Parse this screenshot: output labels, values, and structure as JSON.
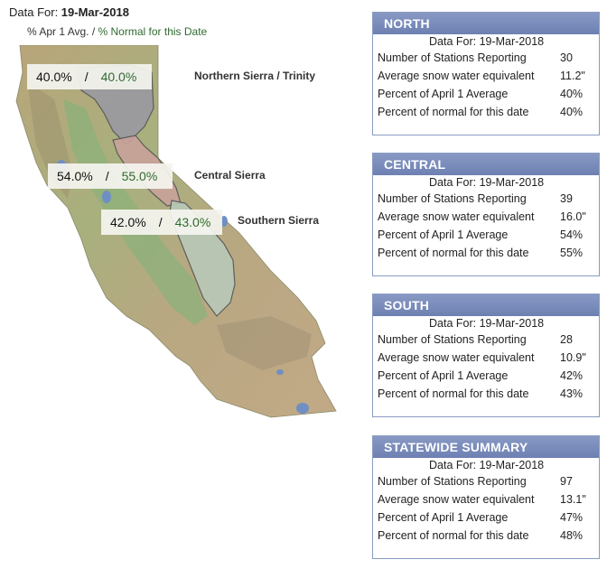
{
  "header": {
    "data_for_label": "Data For: ",
    "data_for_date": "19-Mar-2018",
    "legend_apr": "% Apr 1 Avg.",
    "legend_sep": " / ",
    "legend_normal": "% Normal for this Date"
  },
  "map": {
    "regions": [
      {
        "name": "Northern Sierra / Trinity",
        "pct_apr1": "40.0%",
        "pct_normal": "40.0%",
        "color": "#9a9aa2"
      },
      {
        "name": "Central Sierra",
        "pct_apr1": "54.0%",
        "pct_normal": "55.0%",
        "color": "#c9a29a"
      },
      {
        "name": "Southern Sierra",
        "pct_apr1": "42.0%",
        "pct_normal": "43.0%",
        "color": "#b8c9b8"
      }
    ],
    "separator": "/"
  },
  "panels": [
    {
      "title": "NORTH",
      "date": "Data For: 19-Mar-2018",
      "rows": [
        {
          "label": "Number of Stations Reporting",
          "value": "30"
        },
        {
          "label": "Average snow water equivalent",
          "value": "11.2\""
        },
        {
          "label": "Percent of April 1 Average",
          "value": "40%"
        },
        {
          "label": "Percent of normal for this date",
          "value": "40%"
        }
      ]
    },
    {
      "title": "CENTRAL",
      "date": "Data For: 19-Mar-2018",
      "rows": [
        {
          "label": "Number of Stations Reporting",
          "value": "39"
        },
        {
          "label": "Average snow water equivalent",
          "value": "16.0\""
        },
        {
          "label": "Percent of April 1 Average",
          "value": "54%"
        },
        {
          "label": "Percent of normal for this date",
          "value": "55%"
        }
      ]
    },
    {
      "title": "SOUTH",
      "date": "Data For: 19-Mar-2018",
      "rows": [
        {
          "label": "Number of Stations Reporting",
          "value": "28"
        },
        {
          "label": "Average snow water equivalent",
          "value": "10.9\""
        },
        {
          "label": "Percent of April 1 Average",
          "value": "42%"
        },
        {
          "label": "Percent of normal for this date",
          "value": "43%"
        }
      ]
    },
    {
      "title": "STATEWIDE SUMMARY",
      "date": "Data For: 19-Mar-2018",
      "rows": [
        {
          "label": "Number of Stations Reporting",
          "value": "97"
        },
        {
          "label": "Average snow water equivalent",
          "value": "13.1\""
        },
        {
          "label": "Percent of April 1 Average",
          "value": "47%"
        },
        {
          "label": "Percent of normal for this date",
          "value": "48%"
        }
      ]
    }
  ]
}
